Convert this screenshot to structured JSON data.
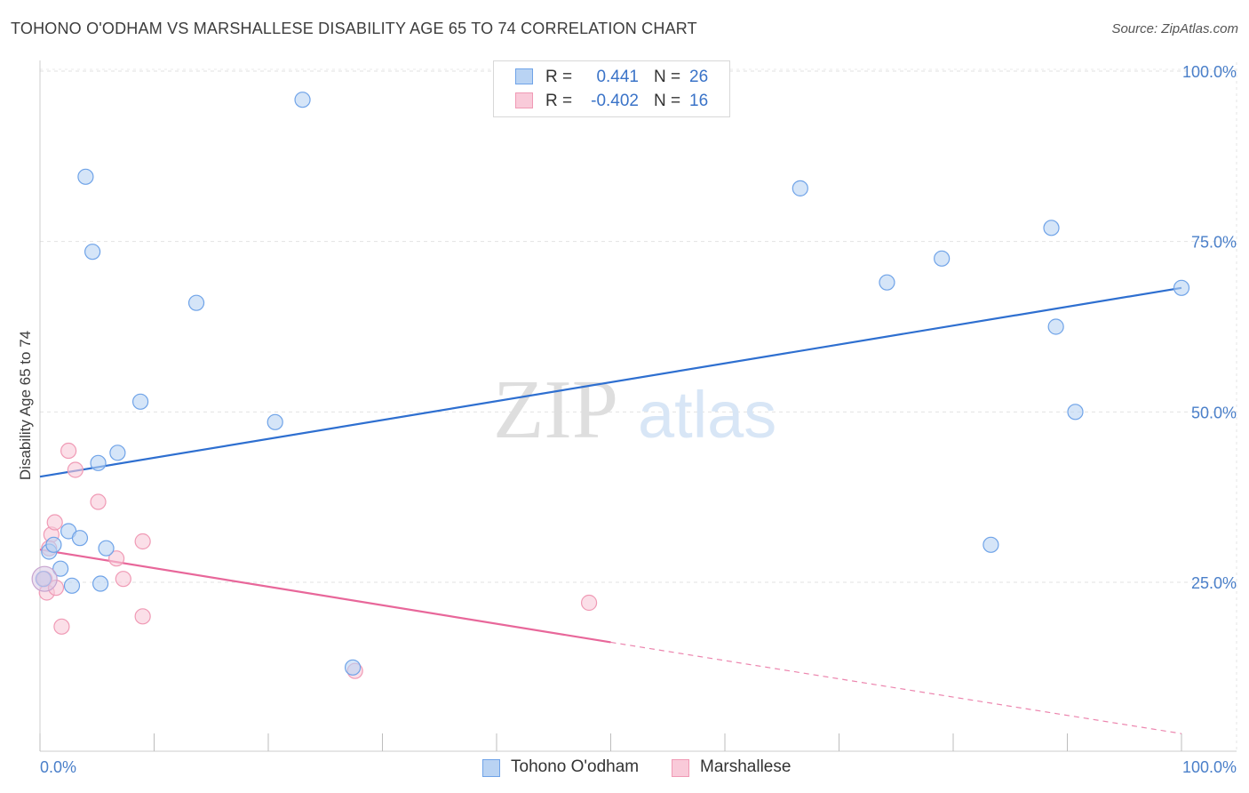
{
  "header": {
    "title": "TOHONO O'ODHAM VS MARSHALLESE DISABILITY AGE 65 TO 74 CORRELATION CHART",
    "source": "Source: ZipAtlas.com"
  },
  "watermark": {
    "zip": "ZIP",
    "atlas": "atlas"
  },
  "legend": {
    "r_label": "R =",
    "n_label": "N =",
    "rows": [
      {
        "name": "Tohono O'odham",
        "r": "0.441",
        "n": "26"
      },
      {
        "name": "Marshallese",
        "r": "-0.402",
        "n": "16"
      }
    ]
  },
  "chart_data": {
    "type": "scatter",
    "title": "TOHONO O'ODHAM VS MARSHALLESE DISABILITY AGE 65 TO 74 CORRELATION CHART",
    "xlabel": "",
    "ylabel": "Disability Age 65 to 74",
    "xlim": [
      0,
      100
    ],
    "ylim": [
      0,
      104
    ],
    "x_tick_labels": [
      "0.0%",
      "100.0%"
    ],
    "y_ticks": [
      25,
      50,
      75,
      100
    ],
    "y_tick_labels": [
      "25.0%",
      "50.0%",
      "75.0%",
      "100.0%"
    ],
    "grid": true,
    "legend_position": "top-center",
    "series": [
      {
        "name": "Tohono O'odham",
        "color": "#6fa3e8",
        "fill": "#b9d3f3",
        "line_color": "#2e6fd0",
        "r": 0.441,
        "n": 26,
        "points": [
          [
            0.3,
            25.5
          ],
          [
            0.8,
            29.5
          ],
          [
            1.2,
            30.5
          ],
          [
            1.8,
            27.0
          ],
          [
            2.5,
            32.5
          ],
          [
            2.8,
            24.5
          ],
          [
            3.5,
            31.5
          ],
          [
            4.0,
            84.5
          ],
          [
            4.6,
            73.5
          ],
          [
            5.1,
            42.5
          ],
          [
            5.3,
            24.8
          ],
          [
            5.8,
            30.0
          ],
          [
            6.8,
            44.0
          ],
          [
            8.8,
            51.5
          ],
          [
            13.7,
            66.0
          ],
          [
            20.6,
            48.5
          ],
          [
            23.0,
            95.8
          ],
          [
            27.4,
            12.5
          ],
          [
            66.6,
            82.8
          ],
          [
            74.2,
            69.0
          ],
          [
            79.0,
            72.5
          ],
          [
            83.3,
            30.5
          ],
          [
            88.6,
            77.0
          ],
          [
            89.0,
            62.5
          ],
          [
            90.7,
            50.0
          ],
          [
            100.0,
            68.2
          ]
        ],
        "trend": {
          "x": [
            0,
            100
          ],
          "y": [
            40.5,
            68.2
          ]
        }
      },
      {
        "name": "Marshallese",
        "color": "#f09ab5",
        "fill": "#f9cad9",
        "line_color": "#e8679a",
        "r": -0.402,
        "n": 16,
        "points": [
          [
            0.4,
            25.5
          ],
          [
            0.6,
            23.5
          ],
          [
            1.0,
            32.0
          ],
          [
            1.3,
            33.8
          ],
          [
            1.4,
            24.2
          ],
          [
            1.9,
            18.5
          ],
          [
            2.5,
            44.3
          ],
          [
            3.1,
            41.5
          ],
          [
            5.1,
            36.8
          ],
          [
            6.7,
            28.5
          ],
          [
            7.3,
            25.5
          ],
          [
            9.0,
            31.0
          ],
          [
            9.0,
            20.0
          ],
          [
            27.6,
            12.0
          ],
          [
            48.1,
            22.0
          ],
          [
            0.8,
            30.0
          ]
        ],
        "trend": {
          "x": [
            0,
            50
          ],
          "y": [
            29.8,
            16.2
          ]
        },
        "trend_extension": {
          "x": [
            50,
            100
          ],
          "y": [
            16.2,
            2.8
          ]
        }
      }
    ]
  }
}
